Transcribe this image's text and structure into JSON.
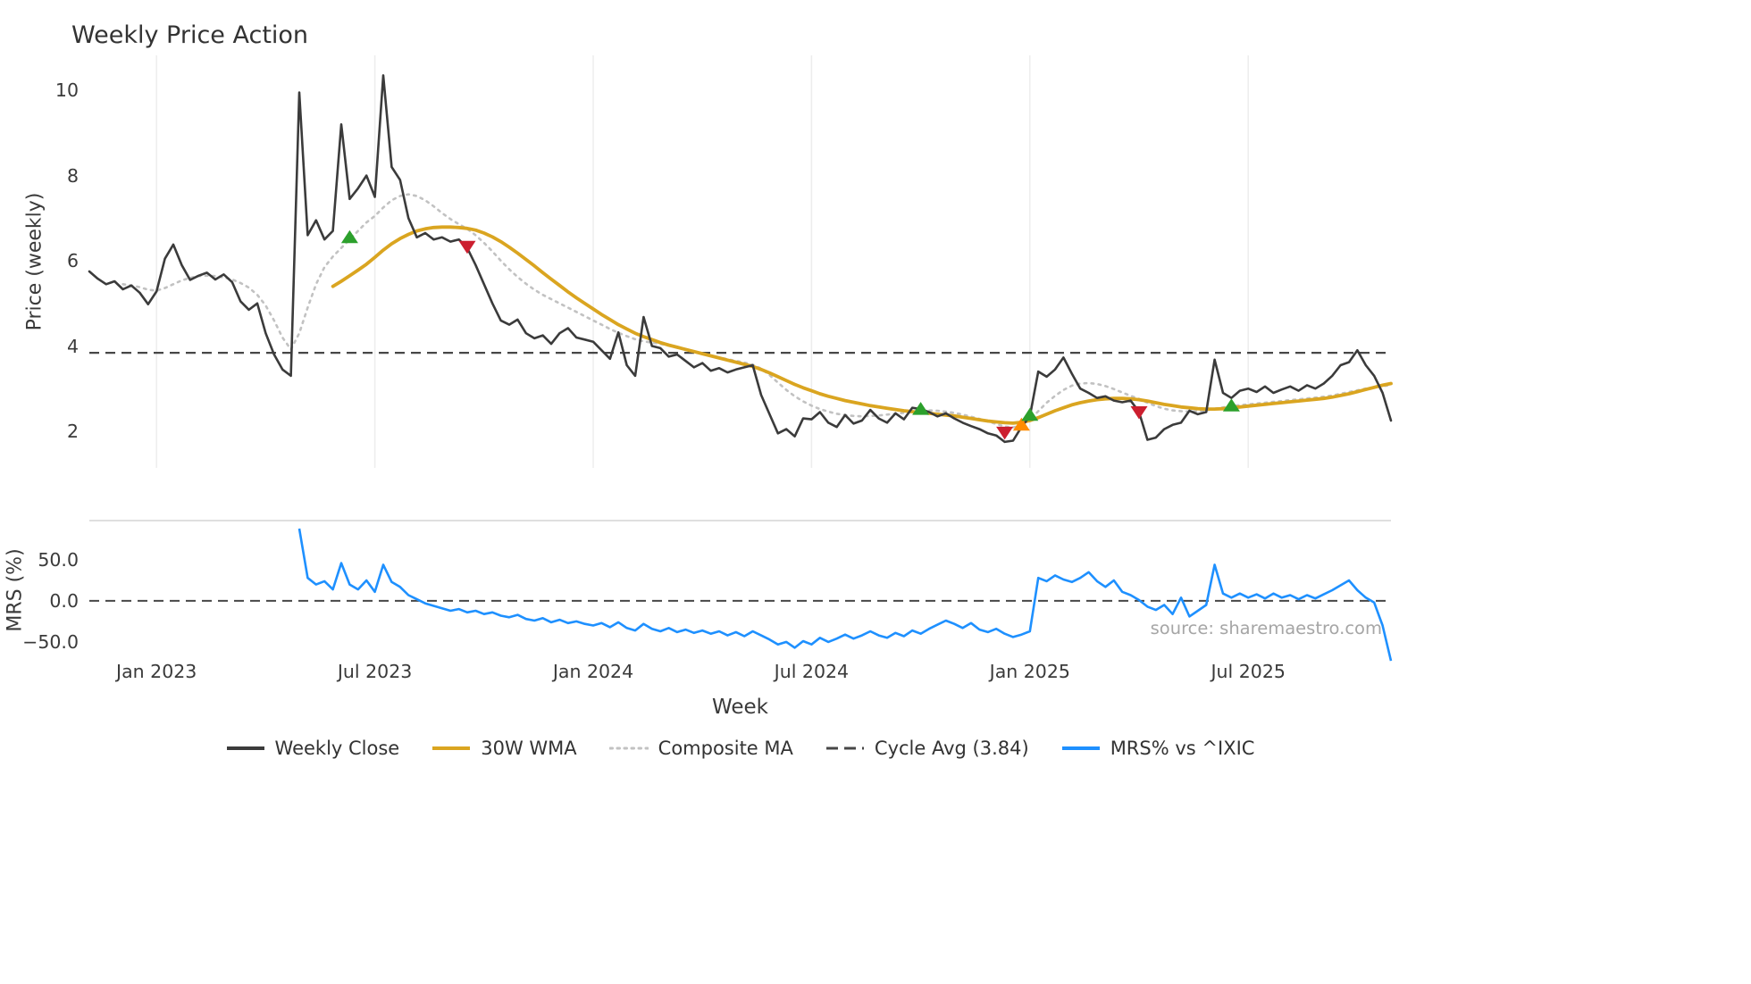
{
  "title": "Weekly Price Action",
  "xlabel": "Week",
  "source_text": "source: sharemaestro.com",
  "legend": [
    {
      "label": "Weekly Close",
      "color": "#3b3b3b",
      "line_style": "solid"
    },
    {
      "label": "30W WMA",
      "color": "#DAA520",
      "line_style": "solid"
    },
    {
      "label": "Composite MA",
      "color": "#c2c2c2",
      "line_style": "dotted"
    },
    {
      "label": "Cycle Avg (3.84)",
      "color": "#474747",
      "line_style": "dashed"
    },
    {
      "label": "MRS% vs ^IXIC",
      "color": "#1E90FF",
      "line_style": "solid"
    }
  ],
  "chart_data": [
    {
      "type": "line",
      "panel": "price",
      "title": "Weekly Price Action",
      "ylabel": "Price (weekly)",
      "x_unit": "week_index",
      "ylim": [
        1.14,
        10.82
      ],
      "yticks": [
        2,
        4,
        6,
        8,
        10
      ],
      "x_tick_weeks": [
        8,
        34,
        60,
        86,
        112,
        138
      ],
      "x_tick_labels": [
        "Jan 2023",
        "Jul 2023",
        "Jan 2024",
        "Jul 2024",
        "Jan 2025",
        "Jul 2025"
      ],
      "grid": "vertical-light",
      "legend_position": "bottom-center",
      "series": [
        {
          "name": "Weekly Close",
          "color": "#3b3b3b",
          "style": "solid",
          "values": [
            5.75,
            5.58,
            5.45,
            5.52,
            5.33,
            5.42,
            5.25,
            4.98,
            5.28,
            6.05,
            6.38,
            5.9,
            5.55,
            5.65,
            5.72,
            5.56,
            5.68,
            5.5,
            5.05,
            4.85,
            5.0,
            4.3,
            3.8,
            3.45,
            3.3,
            9.95,
            6.6,
            6.95,
            6.5,
            6.7,
            9.2,
            7.45,
            7.7,
            8.0,
            7.5,
            10.35,
            8.2,
            7.9,
            7.0,
            6.55,
            6.65,
            6.5,
            6.55,
            6.45,
            6.5,
            6.3,
            5.9,
            5.45,
            5.0,
            4.6,
            4.5,
            4.62,
            4.3,
            4.18,
            4.25,
            4.05,
            4.3,
            4.42,
            4.2,
            4.15,
            4.1,
            3.9,
            3.7,
            4.32,
            3.55,
            3.3,
            4.68,
            4.0,
            3.95,
            3.75,
            3.8,
            3.65,
            3.5,
            3.6,
            3.42,
            3.48,
            3.38,
            3.45,
            3.5,
            3.55,
            2.85,
            2.4,
            1.95,
            2.05,
            1.88,
            2.3,
            2.28,
            2.45,
            2.2,
            2.1,
            2.38,
            2.18,
            2.25,
            2.5,
            2.3,
            2.2,
            2.42,
            2.28,
            2.55,
            2.52,
            2.45,
            2.35,
            2.42,
            2.3,
            2.2,
            2.12,
            2.05,
            1.95,
            1.9,
            1.75,
            1.78,
            2.1,
            2.35,
            3.4,
            3.28,
            3.45,
            3.73,
            3.35,
            3.0,
            2.9,
            2.78,
            2.82,
            2.72,
            2.68,
            2.72,
            2.45,
            1.8,
            1.85,
            2.05,
            2.15,
            2.2,
            2.48,
            2.4,
            2.45,
            3.68,
            2.9,
            2.78,
            2.95,
            3.0,
            2.92,
            3.05,
            2.9,
            2.98,
            3.05,
            2.95,
            3.08,
            3.0,
            3.12,
            3.3,
            3.55,
            3.62,
            3.9,
            3.55,
            3.3,
            2.9,
            2.25
          ]
        },
        {
          "name": "30W WMA",
          "color": "#DAA520",
          "style": "solid",
          "values": [
            null,
            null,
            null,
            null,
            null,
            null,
            null,
            null,
            null,
            null,
            null,
            null,
            null,
            null,
            null,
            null,
            null,
            null,
            null,
            null,
            null,
            null,
            null,
            null,
            null,
            null,
            null,
            null,
            null,
            5.4,
            5.52,
            5.65,
            5.78,
            5.92,
            6.08,
            6.25,
            6.4,
            6.52,
            6.62,
            6.7,
            6.75,
            6.78,
            6.79,
            6.79,
            6.78,
            6.76,
            6.72,
            6.65,
            6.56,
            6.45,
            6.32,
            6.18,
            6.03,
            5.88,
            5.72,
            5.57,
            5.42,
            5.27,
            5.13,
            5.0,
            4.87,
            4.74,
            4.62,
            4.5,
            4.4,
            4.3,
            4.22,
            4.15,
            4.08,
            4.02,
            3.97,
            3.92,
            3.87,
            3.82,
            3.77,
            3.72,
            3.67,
            3.62,
            3.57,
            3.52,
            3.45,
            3.37,
            3.28,
            3.19,
            3.1,
            3.02,
            2.95,
            2.88,
            2.82,
            2.77,
            2.72,
            2.68,
            2.64,
            2.6,
            2.57,
            2.54,
            2.51,
            2.48,
            2.46,
            2.44,
            2.42,
            2.4,
            2.38,
            2.36,
            2.33,
            2.3,
            2.27,
            2.24,
            2.22,
            2.2,
            2.19,
            2.21,
            2.25,
            2.32,
            2.4,
            2.48,
            2.55,
            2.62,
            2.67,
            2.71,
            2.74,
            2.76,
            2.77,
            2.77,
            2.76,
            2.74,
            2.71,
            2.67,
            2.63,
            2.6,
            2.57,
            2.55,
            2.53,
            2.52,
            2.52,
            2.53,
            2.55,
            2.57,
            2.59,
            2.61,
            2.63,
            2.65,
            2.67,
            2.69,
            2.71,
            2.73,
            2.75,
            2.77,
            2.8,
            2.84,
            2.88,
            2.93,
            2.98,
            3.03,
            3.08,
            3.12
          ]
        },
        {
          "name": "Composite MA",
          "color": "#c2c2c2",
          "style": "dotted",
          "values": [
            null,
            null,
            null,
            null,
            5.45,
            5.42,
            5.38,
            5.32,
            5.3,
            5.36,
            5.45,
            5.54,
            5.6,
            5.64,
            5.65,
            5.64,
            5.61,
            5.56,
            5.48,
            5.37,
            5.2,
            4.95,
            4.6,
            4.2,
            3.92,
            4.3,
            4.9,
            5.45,
            5.85,
            6.1,
            6.3,
            6.5,
            6.7,
            6.9,
            7.05,
            7.25,
            7.42,
            7.52,
            7.56,
            7.52,
            7.42,
            7.28,
            7.12,
            6.98,
            6.86,
            6.75,
            6.6,
            6.42,
            6.22,
            6.0,
            5.8,
            5.62,
            5.46,
            5.32,
            5.2,
            5.1,
            5.0,
            4.9,
            4.8,
            4.7,
            4.6,
            4.5,
            4.4,
            4.31,
            4.23,
            4.16,
            4.11,
            4.08,
            4.05,
            4.01,
            3.96,
            3.91,
            3.86,
            3.81,
            3.77,
            3.73,
            3.69,
            3.65,
            3.61,
            3.56,
            3.47,
            3.32,
            3.14,
            2.97,
            2.82,
            2.7,
            2.6,
            2.52,
            2.46,
            2.41,
            2.38,
            2.36,
            2.35,
            2.36,
            2.37,
            2.39,
            2.41,
            2.43,
            2.46,
            2.48,
            2.49,
            2.48,
            2.46,
            2.43,
            2.39,
            2.34,
            2.29,
            2.23,
            2.17,
            2.11,
            2.09,
            2.14,
            2.27,
            2.47,
            2.67,
            2.83,
            2.97,
            3.07,
            3.12,
            3.13,
            3.11,
            3.06,
            2.99,
            2.91,
            2.83,
            2.76,
            2.67,
            2.59,
            2.53,
            2.49,
            2.47,
            2.46,
            2.47,
            2.49,
            2.53,
            2.56,
            2.59,
            2.61,
            2.63,
            2.65,
            2.67,
            2.69,
            2.71,
            2.73,
            2.75,
            2.77,
            2.79,
            2.81,
            2.84,
            2.88,
            2.92,
            2.96,
            3.0,
            3.03,
            3.06,
            3.08
          ]
        }
      ],
      "reference_lines": [
        {
          "name": "Cycle Avg (3.84)",
          "value": 3.84,
          "style": "dashed",
          "color": "#474747"
        }
      ],
      "markers": [
        {
          "signal": "buy",
          "shape": "triangle-up",
          "color": "#2ca02c",
          "week": 31,
          "price": 6.55
        },
        {
          "signal": "sell",
          "shape": "triangle-down",
          "color": "#cc1f2f",
          "week": 45,
          "price": 6.33
        },
        {
          "signal": "buy",
          "shape": "triangle-up",
          "color": "#2ca02c",
          "week": 99,
          "price": 2.52
        },
        {
          "signal": "sell",
          "shape": "triangle-down",
          "color": "#cc1f2f",
          "week": 109,
          "price": 1.97
        },
        {
          "signal": "alert",
          "shape": "triangle-up",
          "color": "#ff8c00",
          "week": 111,
          "price": 2.15
        },
        {
          "signal": "buy",
          "shape": "triangle-up",
          "color": "#2ca02c",
          "week": 112,
          "price": 2.38
        },
        {
          "signal": "sell",
          "shape": "triangle-down",
          "color": "#cc1f2f",
          "week": 125,
          "price": 2.45
        },
        {
          "signal": "buy",
          "shape": "triangle-up",
          "color": "#2ca02c",
          "week": 136,
          "price": 2.6
        }
      ]
    },
    {
      "type": "line",
      "panel": "mrs",
      "ylabel": "MRS (%)",
      "xlabel": "Week",
      "ylim": [
        -74,
        97.8
      ],
      "yticks": [
        50.0,
        0.0,
        -50.0
      ],
      "ytick_labels": [
        "50.0",
        "0.0",
        "−50.0"
      ],
      "series": [
        {
          "name": "MRS% vs ^IXIC",
          "color": "#1E90FF",
          "style": "solid",
          "values": [
            null,
            null,
            null,
            null,
            null,
            null,
            null,
            null,
            null,
            null,
            null,
            null,
            null,
            null,
            null,
            null,
            null,
            null,
            null,
            null,
            null,
            null,
            null,
            null,
            null,
            88,
            28,
            20,
            24,
            14,
            46,
            20,
            14,
            25,
            11,
            44,
            23,
            17,
            7,
            2,
            -3,
            -6,
            -9,
            -12,
            -10,
            -14,
            -12,
            -16,
            -14,
            -18,
            -20,
            -17,
            -22,
            -24,
            -21,
            -26,
            -23,
            -27,
            -25,
            -28,
            -30,
            -27,
            -32,
            -26,
            -33,
            -36,
            -28,
            -34,
            -37,
            -33,
            -38,
            -35,
            -39,
            -36,
            -40,
            -37,
            -42,
            -38,
            -43,
            -37,
            -42,
            -47,
            -53,
            -50,
            -57,
            -49,
            -53,
            -45,
            -50,
            -46,
            -41,
            -46,
            -42,
            -37,
            -42,
            -45,
            -39,
            -43,
            -36,
            -40,
            -34,
            -29,
            -24,
            -28,
            -33,
            -27,
            -35,
            -38,
            -34,
            -40,
            -44,
            -41,
            -37,
            28,
            24,
            31,
            26,
            23,
            28,
            35,
            24,
            17,
            25,
            11,
            7,
            1,
            -7,
            -11,
            -5,
            -16,
            4,
            -19,
            -12,
            -5,
            44,
            9,
            4,
            9,
            4,
            8,
            3,
            9,
            4,
            7,
            2,
            7,
            3,
            8,
            13,
            19,
            25,
            13,
            4,
            -2,
            -30,
            -73
          ]
        }
      ],
      "reference_lines": [
        {
          "name": "zero",
          "value": 0.0,
          "style": "dashed",
          "color": "#474747"
        }
      ]
    }
  ]
}
